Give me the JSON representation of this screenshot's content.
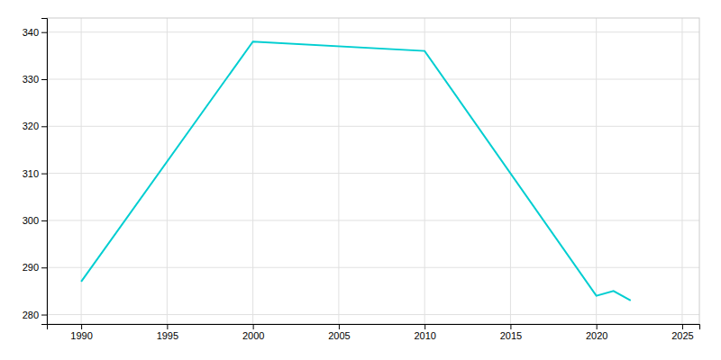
{
  "chart_data": {
    "type": "line",
    "x": [
      1990,
      2000,
      2010,
      2020,
      2021,
      2022
    ],
    "values": [
      287,
      338,
      336,
      284,
      285,
      283
    ],
    "color": "#00CED1",
    "xlim": [
      1988,
      2026
    ],
    "ylim": [
      278,
      343
    ],
    "xticks": [
      1990,
      1995,
      2000,
      2005,
      2010,
      2015,
      2020,
      2025
    ],
    "yticks": [
      280,
      290,
      300,
      310,
      320,
      330,
      340
    ],
    "grid": true
  }
}
